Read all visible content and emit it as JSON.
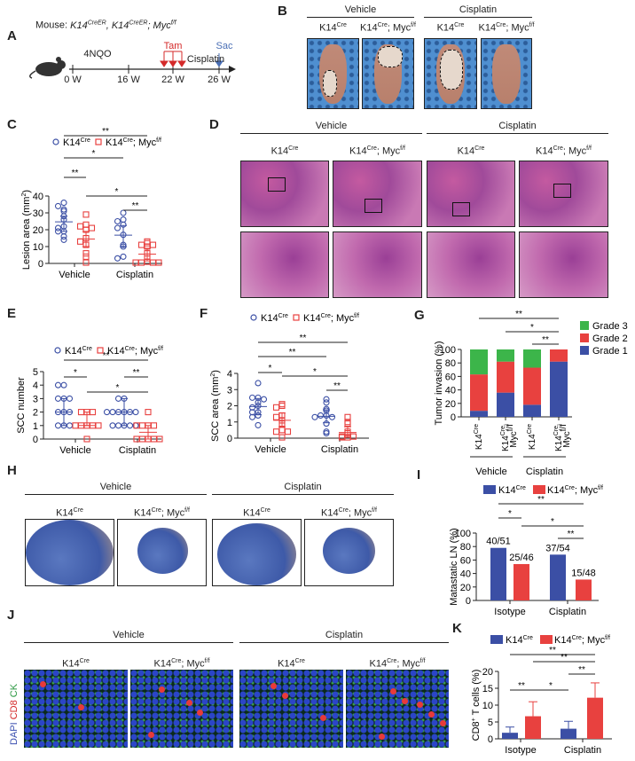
{
  "panels": {
    "A": "A",
    "B": "B",
    "C": "C",
    "D": "D",
    "E": "E",
    "F": "F",
    "G": "G",
    "H": "H",
    "I": "I",
    "J": "J",
    "K": "K"
  },
  "geno": {
    "k14": "K14",
    "cre": "Cre",
    "myc": "; Myc",
    "ff": "f/f",
    "creER": "CreER",
    "k14c": ", K14"
  },
  "groups": {
    "vehicle": "Vehicle",
    "cisplatin": "Cisplatin",
    "isotype": "Isotype"
  },
  "panelA": {
    "mouse": "Mouse: ",
    "agent": "4NQO",
    "tam": "Tam",
    "cis": "Cisplatin",
    "sac": "Sac",
    "ticks": [
      "0 W",
      "16 W",
      "22 W",
      "26 W"
    ],
    "colors": {
      "tam": "#d42a2a",
      "sac": "#4a6fb5"
    }
  },
  "panelJ": {
    "stain": [
      "DAPI ",
      "CD8 ",
      "CK"
    ],
    "colors": [
      "#3a4fb0",
      "#d42a2a",
      "#2f9a45"
    ]
  },
  "colors": {
    "blue": "#3b4fa5",
    "red": "#e8413f",
    "green": "#3cb54a"
  },
  "chart_data": [
    {
      "id": "C",
      "type": "scatter",
      "ylabel": "Lesion area (mm",
      "ylabel_sup": "2",
      "ylabel_end": ")",
      "ylim": [
        0,
        40
      ],
      "yticks": [
        0,
        10,
        20,
        30,
        40
      ],
      "categories": [
        "Vehicle",
        "Cisplatin"
      ],
      "series": [
        {
          "name": "K14Cre; Vehicle",
          "marker": "circle",
          "values": [
            36,
            34,
            32,
            31,
            28,
            26,
            22,
            21,
            19,
            19,
            16,
            14
          ],
          "center": 24.7,
          "err": [
            19,
            28
          ]
        },
        {
          "name": "K14Cre; Mycf/f; Vehicle",
          "marker": "square",
          "values": [
            29,
            23,
            22,
            21,
            20,
            15,
            13,
            11,
            6,
            4,
            0.5
          ],
          "center": 14.5,
          "err": [
            10,
            19
          ]
        },
        {
          "name": "K14Cre; Cisplatin",
          "marker": "circle",
          "values": [
            30,
            26,
            25,
            23,
            21,
            17,
            11,
            10,
            4,
            3
          ],
          "center": 16.8,
          "err": [
            10,
            22.5
          ]
        },
        {
          "name": "K14Cre; Mycf/f; Cisplatin",
          "marker": "square",
          "values": [
            13,
            12,
            11,
            11,
            10,
            6,
            4,
            1,
            0.5,
            0.5,
            0.5,
            0.5
          ],
          "center": 5.5,
          "err": [
            1.5,
            9
          ]
        }
      ],
      "significance": [
        {
          "from": 0,
          "to": 3,
          "label": "**"
        },
        {
          "from": 0,
          "to": 2,
          "label": "*"
        },
        {
          "from": 0,
          "to": 1,
          "label": "**"
        },
        {
          "from": 1,
          "to": 3,
          "label": "*"
        },
        {
          "from": 2,
          "to": 3,
          "label": "**"
        }
      ]
    },
    {
      "id": "E",
      "type": "scatter",
      "ylabel": "SCC number",
      "ylim": [
        0,
        5
      ],
      "yticks": [
        0,
        1,
        2,
        3,
        4,
        5
      ],
      "categories": [
        "Vehicle",
        "Cisplatin"
      ],
      "series": [
        {
          "name": "K14Cre; Vehicle",
          "marker": "circle",
          "values": [
            4,
            4,
            3,
            3,
            3,
            2,
            2,
            2,
            1,
            1,
            1
          ],
          "center": 2,
          "err": [
            1,
            3
          ]
        },
        {
          "name": "K14Cre; Mycf/f; Vehicle",
          "marker": "square",
          "values": [
            2,
            2,
            2,
            1,
            1,
            1,
            1,
            1,
            0
          ],
          "center": 1,
          "err": [
            1,
            2
          ]
        },
        {
          "name": "K14Cre; Cisplatin",
          "marker": "circle",
          "values": [
            3,
            3,
            2,
            2,
            2,
            2,
            2,
            2,
            1,
            1,
            1,
            1,
            1
          ],
          "center": 2,
          "err": [
            1,
            3
          ]
        },
        {
          "name": "K14Cre; Mycf/f; Cisplatin",
          "marker": "square",
          "values": [
            2,
            1,
            1,
            1,
            1,
            0,
            0,
            0,
            0,
            0
          ],
          "center": 0.5,
          "err": [
            0,
            1
          ]
        }
      ],
      "significance": [
        {
          "from": 0,
          "to": 3,
          "label": "**"
        },
        {
          "from": 0,
          "to": 1,
          "label": "*"
        },
        {
          "from": 2,
          "to": 3,
          "label": "**"
        },
        {
          "from": 1,
          "to": 3,
          "label": "*"
        }
      ]
    },
    {
      "id": "F",
      "type": "scatter",
      "ylabel": "SCC area (mm",
      "ylabel_sup": "2",
      "ylabel_end": ")",
      "ylim": [
        0,
        4
      ],
      "yticks": [
        0,
        1,
        2,
        3,
        4
      ],
      "categories": [
        "Vehicle",
        "Cisplatin"
      ],
      "series": [
        {
          "name": "K14Cre; Vehicle",
          "marker": "circle",
          "values": [
            3.4,
            2.5,
            2.5,
            2.4,
            2.2,
            2.0,
            1.9,
            1.6,
            1.6,
            1.4,
            1.3,
            0.8
          ],
          "center": 1.95,
          "err": [
            1.45,
            2.45
          ]
        },
        {
          "name": "K14Cre; Mycf/f; Vehicle",
          "marker": "square",
          "values": [
            2.1,
            2.0,
            1.9,
            1.4,
            1.3,
            1.1,
            0.9,
            0.5,
            0.4,
            0.4,
            0.05
          ],
          "center": 1.1,
          "err": [
            0.7,
            1.55
          ]
        },
        {
          "name": "K14Cre; Cisplatin",
          "marker": "circle",
          "values": [
            2.4,
            2.2,
            1.8,
            1.7,
            1.4,
            1.4,
            1.3,
            1.3,
            0.9,
            0.4,
            0.3
          ],
          "center": 1.35,
          "err": [
            0.95,
            1.75
          ]
        },
        {
          "name": "K14Cre; Mycf/f; Cisplatin",
          "marker": "square",
          "values": [
            1.3,
            1.0,
            0.9,
            0.4,
            0.3,
            0.1,
            0.1,
            0.05,
            0.05
          ],
          "center": 0.35,
          "err": [
            0.05,
            0.7
          ]
        }
      ],
      "significance": [
        {
          "from": 0,
          "to": 3,
          "label": "**"
        },
        {
          "from": 0,
          "to": 2,
          "label": "**"
        },
        {
          "from": 0,
          "to": 1,
          "label": "*"
        },
        {
          "from": 1,
          "to": 3,
          "label": "*"
        },
        {
          "from": 2,
          "to": 3,
          "label": "**"
        }
      ]
    },
    {
      "id": "G",
      "type": "bar",
      "stacked": true,
      "ylabel": "Tumor invasion (%)",
      "ylim": [
        0,
        100
      ],
      "yticks": [
        0,
        20,
        40,
        60,
        80,
        100
      ],
      "legend": "right",
      "categories": [
        "K14Cre",
        "K14Cre; Mycf/f",
        "K14Cre",
        "K14Cre; Mycf/f"
      ],
      "groups": [
        "Vehicle",
        "Cisplatin"
      ],
      "series": [
        {
          "name": "Grade 1",
          "color": "#3b4fa5",
          "values": [
            9,
            36,
            18,
            82
          ]
        },
        {
          "name": "Grade 2",
          "color": "#e8413f",
          "values": [
            54,
            46,
            55,
            18
          ]
        },
        {
          "name": "Grade 3",
          "color": "#3cb54a",
          "values": [
            37,
            18,
            27,
            0
          ]
        }
      ],
      "significance": [
        {
          "from": 0,
          "to": 3,
          "label": "**"
        },
        {
          "from": 1,
          "to": 3,
          "label": "*"
        },
        {
          "from": 2,
          "to": 3,
          "label": "**"
        }
      ]
    },
    {
      "id": "I",
      "type": "bar",
      "ylabel": "Matastatic LN (%)",
      "ylim": [
        0,
        100
      ],
      "yticks": [
        0,
        20,
        40,
        60,
        80,
        100
      ],
      "categories": [
        "Isotype",
        "Cisplatin"
      ],
      "legend": "top",
      "series": [
        {
          "name": "K14Cre",
          "color": "#3b4fa5",
          "values": [
            78,
            68
          ],
          "labels": [
            "40/51",
            "37/54"
          ]
        },
        {
          "name": "K14Cre; Mycf/f",
          "color": "#e8413f",
          "values": [
            54,
            31
          ],
          "labels": [
            "25/46",
            "15/48"
          ]
        }
      ],
      "significance": [
        {
          "from": 0,
          "to": 3,
          "label": "**"
        },
        {
          "from": 0,
          "to": 1,
          "label": "*"
        },
        {
          "from": 1,
          "to": 3,
          "label": "*"
        },
        {
          "from": 2,
          "to": 3,
          "label": "**"
        }
      ]
    },
    {
      "id": "K",
      "type": "bar",
      "ylabel": "CD8",
      "ylabel_sup": "+",
      "ylabel_end": " T cells (%)",
      "ylim": [
        0,
        20
      ],
      "yticks": [
        0,
        5,
        10,
        15,
        20
      ],
      "categories": [
        "Isotype",
        "Cisplatin"
      ],
      "legend": "top",
      "series": [
        {
          "name": "K14Cre",
          "color": "#3b4fa5",
          "values": [
            1.8,
            3.0
          ],
          "err": [
            1.7,
            2.2
          ]
        },
        {
          "name": "K14Cre; Mycf/f",
          "color": "#e8413f",
          "values": [
            6.7,
            12.2
          ],
          "err": [
            4.3,
            4.4
          ]
        }
      ],
      "significance": [
        {
          "from": 0,
          "to": 3,
          "label": "**"
        },
        {
          "from": 1,
          "to": 3,
          "label": "**"
        },
        {
          "from": 2,
          "to": 3,
          "label": "**"
        },
        {
          "from": 0,
          "to": 1,
          "label": "**"
        },
        {
          "from": 1,
          "to": 2,
          "label": "*"
        }
      ]
    }
  ]
}
